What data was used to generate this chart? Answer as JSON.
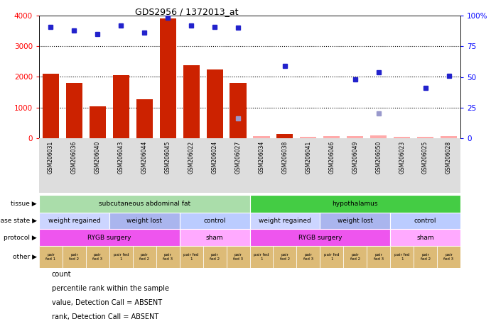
{
  "title": "GDS2956 / 1372013_at",
  "samples": [
    "GSM206031",
    "GSM206036",
    "GSM206040",
    "GSM206043",
    "GSM206044",
    "GSM206045",
    "GSM206022",
    "GSM206024",
    "GSM206027",
    "GSM206034",
    "GSM206038",
    "GSM206041",
    "GSM206046",
    "GSM206049",
    "GSM206050",
    "GSM206023",
    "GSM206025",
    "GSM206028"
  ],
  "bar_values": [
    2100,
    1800,
    1050,
    2050,
    1280,
    3900,
    2380,
    2250,
    1800,
    60,
    130,
    40,
    80,
    60,
    100,
    50,
    40,
    80
  ],
  "bar_absent": [
    false,
    false,
    false,
    false,
    false,
    false,
    false,
    false,
    false,
    true,
    false,
    true,
    true,
    true,
    true,
    true,
    true,
    true
  ],
  "dot_values": [
    91,
    88,
    85,
    92,
    86,
    98,
    92,
    91,
    90,
    null,
    59,
    null,
    null,
    48,
    54,
    null,
    41,
    51
  ],
  "dot_absent": [
    false,
    false,
    false,
    false,
    false,
    false,
    false,
    false,
    false,
    false,
    false,
    false,
    false,
    false,
    false,
    false,
    false,
    false
  ],
  "absent_dot_values": [
    null,
    null,
    null,
    null,
    null,
    null,
    null,
    null,
    16,
    null,
    null,
    null,
    null,
    null,
    20,
    null,
    null,
    null
  ],
  "ylim_left": [
    0,
    4000
  ],
  "ylim_right": [
    0,
    100
  ],
  "yticks_left": [
    0,
    1000,
    2000,
    3000,
    4000
  ],
  "yticks_right": [
    0,
    25,
    50,
    75,
    100
  ],
  "ytick_labels_right": [
    "0",
    "25",
    "50",
    "75",
    "100%"
  ],
  "grid_values": [
    1000,
    2000,
    3000
  ],
  "bar_color": "#cc2200",
  "bar_absent_color": "#ffaaaa",
  "dot_color": "#2222cc",
  "dot_absent_color": "#9999cc",
  "tissue_row": {
    "groups": [
      {
        "label": "subcutaneous abdominal fat",
        "start": 0,
        "end": 9,
        "color": "#aaddaa"
      },
      {
        "label": "hypothalamus",
        "start": 9,
        "end": 18,
        "color": "#44cc44"
      }
    ]
  },
  "disease_state_row": {
    "groups": [
      {
        "label": "weight regained",
        "start": 0,
        "end": 3,
        "color": "#ccd5ff"
      },
      {
        "label": "weight lost",
        "start": 3,
        "end": 6,
        "color": "#aab5ee"
      },
      {
        "label": "control",
        "start": 6,
        "end": 9,
        "color": "#bbccff"
      },
      {
        "label": "weight regained",
        "start": 9,
        "end": 12,
        "color": "#ccd5ff"
      },
      {
        "label": "weight lost",
        "start": 12,
        "end": 15,
        "color": "#aab5ee"
      },
      {
        "label": "control",
        "start": 15,
        "end": 18,
        "color": "#bbccff"
      }
    ]
  },
  "protocol_row": {
    "groups": [
      {
        "label": "RYGB surgery",
        "start": 0,
        "end": 6,
        "color": "#ee55ee"
      },
      {
        "label": "sham",
        "start": 6,
        "end": 9,
        "color": "#ffaaff"
      },
      {
        "label": "RYGB surgery",
        "start": 9,
        "end": 15,
        "color": "#ee55ee"
      },
      {
        "label": "sham",
        "start": 15,
        "end": 18,
        "color": "#ffaaff"
      }
    ]
  },
  "other_labels": [
    "pair\nfed 1",
    "pair\nfed 2",
    "pair\nfed 3",
    "pair fed\n1",
    "pair\nfed 2",
    "pair\nfed 3",
    "pair fed\n1",
    "pair\nfed 2",
    "pair\nfed 3",
    "pair fed\n1",
    "pair\nfed 2",
    "pair\nfed 3",
    "pair fed\n1",
    "pair\nfed 2",
    "pair\nfed 3",
    "pair fed\n1",
    "pair\nfed 2",
    "pair\nfed 3"
  ],
  "other_color": "#ddbb77",
  "row_labels": [
    "tissue",
    "disease state",
    "protocol",
    "other"
  ],
  "legend_items": [
    {
      "color": "#cc2200",
      "label": "count"
    },
    {
      "color": "#2222cc",
      "label": "percentile rank within the sample"
    },
    {
      "color": "#ffaaaa",
      "label": "value, Detection Call = ABSENT"
    },
    {
      "color": "#9999cc",
      "label": "rank, Detection Call = ABSENT"
    }
  ]
}
